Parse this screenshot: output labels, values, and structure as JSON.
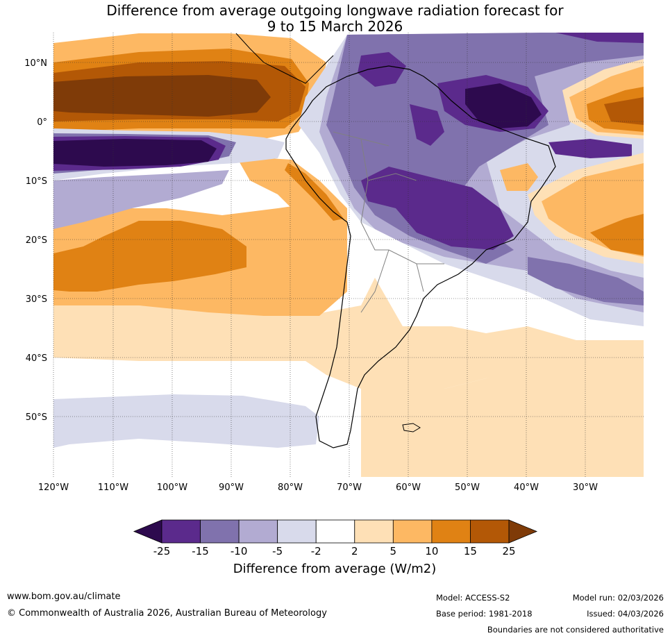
{
  "title": {
    "line1": "Difference from average outgoing longwave radiation forecast for",
    "line2": "9 to 15 March 2026"
  },
  "map": {
    "region": "South America and adjacent oceans",
    "lat_labels": [
      "10°N",
      "0°",
      "10°S",
      "20°S",
      "30°S",
      "40°S",
      "50°S"
    ],
    "lon_labels": [
      "120°W",
      "110°W",
      "100°W",
      "90°W",
      "80°W",
      "70°W",
      "60°W",
      "50°W",
      "40°W",
      "30°W"
    ]
  },
  "colorbar": {
    "ticks": [
      "-25",
      "-15",
      "-10",
      "-5",
      "-2",
      "2",
      "5",
      "10",
      "15",
      "25"
    ],
    "colors": [
      "#2d0a4e",
      "#5b2a8c",
      "#8072ad",
      "#b2abd2",
      "#d8daeb",
      "#ffffff",
      "#fee0b6",
      "#fdb863",
      "#e08214",
      "#b35806",
      "#7f3b08"
    ],
    "label": "Difference from average (W/m2)"
  },
  "footer": {
    "website": "www.bom.gov.au/climate",
    "copyright": "© Commonwealth of Australia 2026, Australian Bureau of Meteorology",
    "model": "Model: ACCESS-S2",
    "base_period": "Base period: 1981-2018",
    "model_run": "Model run: 02/03/2026",
    "issued": "Issued: 04/03/2026",
    "disclaimer": "Boundaries are not considered authoritative"
  }
}
